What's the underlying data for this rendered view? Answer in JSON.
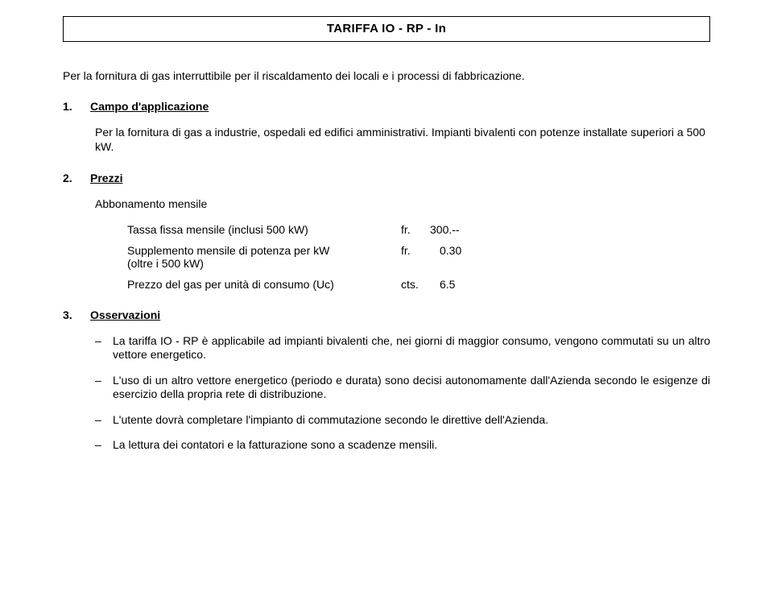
{
  "title": "TARIFFA IO - RP - In",
  "intro": "Per la fornitura di gas interruttibile per il riscaldamento dei locali e i processi di fabbricazione.",
  "section1": {
    "num": "1.",
    "heading": "Campo d'applicazione",
    "p1": "Per la fornitura di gas a industrie, ospedali ed edifici amministrativi. Impianti bivalenti con potenze installate superiori a 500 kW."
  },
  "section2": {
    "num": "2.",
    "heading": "Prezzi",
    "subhead": "Abbonamento mensile",
    "rows": [
      {
        "label": "Tassa fissa mensile (inclusi 500 kW)",
        "unit": "fr.",
        "val": "300.--"
      },
      {
        "label": "Supplemento mensile di potenza per kW",
        "sublabel": "(oltre i 500 kW)",
        "unit": "fr.",
        "val": "0.30"
      },
      {
        "label": "Prezzo del gas per unità di consumo (Uc)",
        "unit": "cts.",
        "val": "6.5"
      }
    ]
  },
  "section3": {
    "num": "3.",
    "heading": "Osservazioni",
    "items": [
      "La tariffa IO - RP è applicabile ad impianti bivalenti che, nei giorni di maggior consumo, vengono commutati su un altro vettore energetico.",
      "L'uso di un altro vettore energetico (periodo e durata) sono decisi autonomamente dall'Azienda secondo le esigenze di esercizio della propria rete di distribuzione.",
      "L'utente dovrà completare l'impianto di commutazione secondo le direttive dell'Azienda.",
      "La lettura dei contatori e la fatturazione sono a scadenze mensili."
    ]
  },
  "dash": "–"
}
